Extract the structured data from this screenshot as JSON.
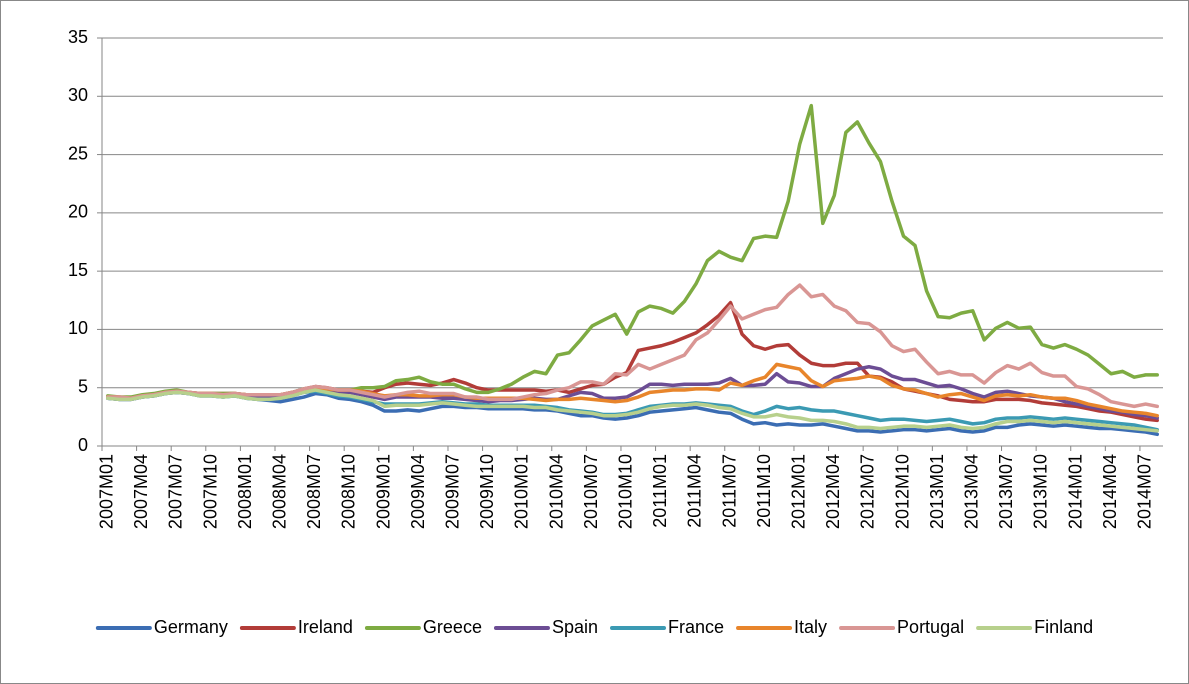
{
  "chart_data": {
    "type": "line",
    "categories": [
      "2007M01",
      null,
      null,
      "2007M04",
      null,
      null,
      "2007M07",
      null,
      null,
      "2007M10",
      null,
      null,
      "2008M01",
      null,
      null,
      "2008M04",
      null,
      null,
      "2008M07",
      null,
      null,
      "2008M10",
      null,
      null,
      "2009M01",
      null,
      null,
      "2009M04",
      null,
      null,
      "2009M07",
      null,
      null,
      "2009M10",
      null,
      null,
      "2010M01",
      null,
      null,
      "2010M04",
      null,
      null,
      "2010M07",
      null,
      null,
      "2010M10",
      null,
      null,
      "2011M01",
      null,
      null,
      "2011M04",
      null,
      null,
      "2011M07",
      null,
      null,
      "2011M10",
      null,
      null,
      "2012M01",
      null,
      null,
      "2012M04",
      null,
      null,
      "2012M07",
      null,
      null,
      "2012M10",
      null,
      null,
      "2013M01",
      null,
      null,
      "2013M04",
      null,
      null,
      "2013M07",
      null,
      null,
      "2013M10",
      null,
      null,
      "2014M01",
      null,
      null,
      "2014M04",
      null,
      null,
      "2014M07",
      null
    ],
    "ylim": [
      0,
      35
    ],
    "yticks": [
      0,
      5,
      10,
      15,
      20,
      25,
      30,
      35
    ],
    "grid": true,
    "legend": "bottom",
    "series": [
      {
        "name": "Germany",
        "color": "#3b6db3",
        "values": [
          4.1,
          4.0,
          4.0,
          4.2,
          4.3,
          4.5,
          4.6,
          4.5,
          4.3,
          4.3,
          4.2,
          4.3,
          4.1,
          4.0,
          3.9,
          3.8,
          4.0,
          4.2,
          4.5,
          4.4,
          4.1,
          4.0,
          3.8,
          3.5,
          3.0,
          3.0,
          3.1,
          3.0,
          3.2,
          3.4,
          3.4,
          3.3,
          3.3,
          3.2,
          3.2,
          3.2,
          3.2,
          3.1,
          3.1,
          3.0,
          2.8,
          2.6,
          2.6,
          2.4,
          2.3,
          2.4,
          2.6,
          2.9,
          3.0,
          3.1,
          3.2,
          3.3,
          3.1,
          2.9,
          2.8,
          2.3,
          1.9,
          2.0,
          1.8,
          1.9,
          1.8,
          1.8,
          1.9,
          1.7,
          1.5,
          1.3,
          1.3,
          1.2,
          1.3,
          1.4,
          1.4,
          1.3,
          1.4,
          1.5,
          1.3,
          1.2,
          1.3,
          1.6,
          1.6,
          1.8,
          1.9,
          1.8,
          1.7,
          1.8,
          1.7,
          1.6,
          1.5,
          1.5,
          1.4,
          1.3,
          1.2,
          1.0
        ]
      },
      {
        "name": "Ireland",
        "color": "#b23c38",
        "values": [
          4.2,
          4.1,
          4.1,
          4.3,
          4.4,
          4.6,
          4.7,
          4.6,
          4.5,
          4.5,
          4.5,
          4.5,
          4.4,
          4.3,
          4.3,
          4.4,
          4.6,
          4.9,
          5.1,
          5.0,
          4.8,
          4.8,
          4.7,
          4.6,
          5.0,
          5.3,
          5.4,
          5.3,
          5.2,
          5.4,
          5.7,
          5.4,
          5.0,
          4.8,
          4.8,
          4.8,
          4.8,
          4.8,
          4.7,
          4.8,
          4.6,
          4.9,
          5.2,
          5.3,
          5.9,
          6.3,
          8.2,
          8.4,
          8.6,
          8.9,
          9.3,
          9.7,
          10.4,
          11.2,
          12.3,
          9.6,
          8.6,
          8.3,
          8.6,
          8.7,
          7.8,
          7.1,
          6.9,
          6.9,
          7.1,
          7.1,
          6.0,
          5.9,
          5.5,
          4.9,
          4.7,
          4.5,
          4.3,
          4.0,
          3.9,
          3.8,
          3.8,
          4.0,
          4.0,
          4.0,
          3.9,
          3.7,
          3.6,
          3.5,
          3.4,
          3.2,
          3.0,
          2.9,
          2.7,
          2.5,
          2.3,
          2.2
        ]
      },
      {
        "name": "Greece",
        "color": "#7eab42",
        "values": [
          4.3,
          4.2,
          4.2,
          4.4,
          4.5,
          4.7,
          4.8,
          4.6,
          4.5,
          4.5,
          4.5,
          4.5,
          4.4,
          4.4,
          4.4,
          4.4,
          4.6,
          4.9,
          5.0,
          4.9,
          4.8,
          4.8,
          5.0,
          5.0,
          5.1,
          5.6,
          5.7,
          5.9,
          5.5,
          5.3,
          5.3,
          4.9,
          4.6,
          4.6,
          4.9,
          5.3,
          5.9,
          6.4,
          6.2,
          7.8,
          8.0,
          9.1,
          10.3,
          10.8,
          11.3,
          9.6,
          11.5,
          12.0,
          11.8,
          11.4,
          12.4,
          13.9,
          15.9,
          16.7,
          16.2,
          15.9,
          17.8,
          18.0,
          17.9,
          21.0,
          25.9,
          29.2,
          19.1,
          21.5,
          26.9,
          27.8,
          26.0,
          24.4,
          21.0,
          18.0,
          17.2,
          13.3,
          11.1,
          11.0,
          11.4,
          11.6,
          9.1,
          10.1,
          10.6,
          10.1,
          10.2,
          8.7,
          8.4,
          8.7,
          8.3,
          7.8,
          7.0,
          6.2,
          6.4,
          5.9,
          6.1,
          6.1
        ]
      },
      {
        "name": "Spain",
        "color": "#6c4d94",
        "values": [
          4.1,
          4.0,
          4.0,
          4.2,
          4.3,
          4.5,
          4.6,
          4.5,
          4.4,
          4.4,
          4.3,
          4.4,
          4.3,
          4.2,
          4.2,
          4.3,
          4.5,
          4.8,
          4.9,
          4.8,
          4.6,
          4.6,
          4.4,
          4.2,
          4.0,
          4.2,
          4.2,
          4.2,
          4.2,
          4.1,
          4.1,
          4.0,
          3.9,
          3.8,
          3.9,
          3.9,
          4.0,
          4.1,
          4.0,
          4.0,
          4.3,
          4.6,
          4.5,
          4.1,
          4.1,
          4.2,
          4.7,
          5.3,
          5.3,
          5.2,
          5.3,
          5.3,
          5.3,
          5.4,
          5.8,
          5.2,
          5.2,
          5.3,
          6.2,
          5.5,
          5.4,
          5.1,
          5.1,
          5.8,
          6.2,
          6.6,
          6.8,
          6.6,
          6.0,
          5.7,
          5.7,
          5.4,
          5.1,
          5.2,
          4.9,
          4.5,
          4.2,
          4.6,
          4.7,
          4.5,
          4.3,
          4.2,
          4.1,
          3.8,
          3.6,
          3.4,
          3.2,
          3.0,
          2.9,
          2.7,
          2.6,
          2.4
        ]
      },
      {
        "name": "France",
        "color": "#3b9ab3",
        "values": [
          4.1,
          4.0,
          4.0,
          4.2,
          4.3,
          4.5,
          4.6,
          4.5,
          4.3,
          4.3,
          4.2,
          4.3,
          4.1,
          4.0,
          4.0,
          4.1,
          4.3,
          4.6,
          4.7,
          4.5,
          4.3,
          4.2,
          4.0,
          3.8,
          3.6,
          3.6,
          3.6,
          3.6,
          3.7,
          3.8,
          3.7,
          3.6,
          3.6,
          3.5,
          3.5,
          3.5,
          3.5,
          3.5,
          3.4,
          3.3,
          3.1,
          3.0,
          2.9,
          2.7,
          2.7,
          2.8,
          3.1,
          3.4,
          3.5,
          3.6,
          3.6,
          3.7,
          3.6,
          3.5,
          3.4,
          3.0,
          2.7,
          3.0,
          3.4,
          3.2,
          3.3,
          3.1,
          3.0,
          3.0,
          2.8,
          2.6,
          2.4,
          2.2,
          2.3,
          2.3,
          2.2,
          2.1,
          2.2,
          2.3,
          2.1,
          1.9,
          2.0,
          2.3,
          2.4,
          2.4,
          2.5,
          2.4,
          2.3,
          2.4,
          2.3,
          2.2,
          2.1,
          2.0,
          1.9,
          1.8,
          1.6,
          1.4
        ]
      },
      {
        "name": "Italy",
        "color": "#e8852b",
        "values": [
          4.2,
          4.2,
          4.1,
          4.3,
          4.4,
          4.6,
          4.7,
          4.6,
          4.5,
          4.5,
          4.4,
          4.5,
          4.4,
          4.4,
          4.4,
          4.4,
          4.6,
          4.8,
          5.0,
          4.9,
          4.8,
          4.8,
          4.7,
          4.5,
          4.3,
          4.4,
          4.4,
          4.3,
          4.3,
          4.4,
          4.4,
          4.2,
          4.1,
          4.1,
          4.1,
          4.1,
          4.1,
          4.0,
          3.9,
          4.0,
          4.0,
          4.1,
          4.0,
          3.9,
          3.8,
          3.9,
          4.2,
          4.6,
          4.7,
          4.8,
          4.8,
          4.9,
          4.9,
          4.8,
          5.4,
          5.2,
          5.6,
          5.9,
          7.0,
          6.8,
          6.6,
          5.6,
          5.1,
          5.6,
          5.7,
          5.8,
          6.0,
          5.8,
          5.2,
          4.9,
          4.8,
          4.5,
          4.2,
          4.4,
          4.5,
          4.2,
          3.9,
          4.3,
          4.4,
          4.3,
          4.4,
          4.2,
          4.1,
          4.1,
          3.9,
          3.6,
          3.4,
          3.2,
          3.0,
          2.9,
          2.8,
          2.6
        ]
      },
      {
        "name": "Portugal",
        "color": "#d99694",
        "values": [
          4.2,
          4.2,
          4.1,
          4.3,
          4.4,
          4.6,
          4.7,
          4.6,
          4.5,
          4.5,
          4.4,
          4.5,
          4.4,
          4.4,
          4.4,
          4.4,
          4.6,
          4.9,
          5.1,
          5.0,
          4.8,
          4.8,
          4.6,
          4.4,
          4.2,
          4.4,
          4.6,
          4.7,
          4.5,
          4.5,
          4.5,
          4.2,
          4.2,
          4.0,
          4.0,
          4.0,
          4.2,
          4.4,
          4.5,
          4.8,
          5.0,
          5.5,
          5.5,
          5.3,
          6.2,
          6.1,
          7.0,
          6.6,
          7.0,
          7.4,
          7.8,
          9.1,
          9.7,
          10.8,
          12.0,
          10.9,
          11.3,
          11.7,
          11.9,
          13.0,
          13.8,
          12.8,
          13.0,
          12.0,
          11.6,
          10.6,
          10.5,
          9.8,
          8.6,
          8.1,
          8.3,
          7.2,
          6.2,
          6.4,
          6.1,
          6.1,
          5.4,
          6.3,
          6.9,
          6.6,
          7.1,
          6.3,
          6.0,
          6.0,
          5.1,
          4.9,
          4.4,
          3.8,
          3.6,
          3.4,
          3.6,
          3.4
        ]
      },
      {
        "name": "Finland",
        "color": "#b7d08c",
        "values": [
          4.1,
          4.0,
          4.0,
          4.2,
          4.3,
          4.5,
          4.6,
          4.5,
          4.3,
          4.3,
          4.2,
          4.3,
          4.1,
          4.0,
          4.0,
          4.1,
          4.3,
          4.6,
          4.8,
          4.6,
          4.4,
          4.3,
          4.1,
          3.9,
          3.4,
          3.5,
          3.5,
          3.5,
          3.6,
          3.7,
          3.6,
          3.5,
          3.4,
          3.4,
          3.4,
          3.4,
          3.4,
          3.3,
          3.3,
          3.1,
          3.0,
          2.9,
          2.8,
          2.6,
          2.6,
          2.7,
          2.9,
          3.2,
          3.4,
          3.5,
          3.5,
          3.6,
          3.5,
          3.3,
          3.2,
          2.8,
          2.5,
          2.5,
          2.7,
          2.5,
          2.4,
          2.2,
          2.2,
          2.1,
          1.9,
          1.6,
          1.6,
          1.5,
          1.6,
          1.7,
          1.7,
          1.6,
          1.7,
          1.8,
          1.6,
          1.5,
          1.6,
          1.9,
          2.1,
          2.1,
          2.2,
          2.1,
          2.0,
          2.1,
          2.0,
          1.9,
          1.8,
          1.7,
          1.6,
          1.5,
          1.4,
          1.3
        ]
      }
    ]
  }
}
